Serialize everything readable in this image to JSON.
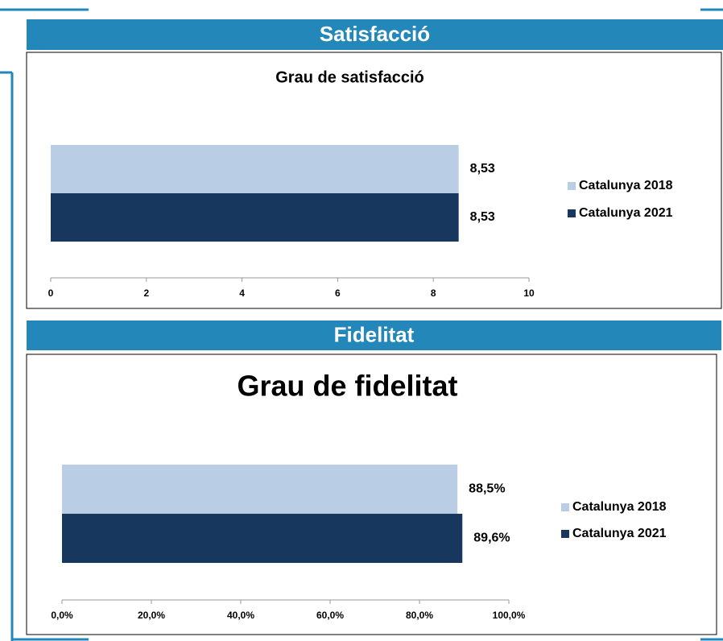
{
  "chart_data": [
    {
      "type": "bar",
      "orientation": "horizontal",
      "section": "Satisfacció",
      "title": "Grau de satisfacció",
      "series": [
        {
          "name": "Catalunya 2018",
          "color": "#b9cde5",
          "values": [
            8.53
          ],
          "value_labels": [
            "8,53"
          ]
        },
        {
          "name": "Catalunya 2021",
          "color": "#17375e",
          "values": [
            8.53
          ],
          "value_labels": [
            "8,53"
          ]
        }
      ],
      "xlim": [
        0,
        10
      ],
      "xticks": [
        0,
        2,
        4,
        6,
        8,
        10
      ],
      "legend": "right"
    },
    {
      "type": "bar",
      "orientation": "horizontal",
      "section": "Fidelitat",
      "title": "Grau de fidelitat",
      "series": [
        {
          "name": "Catalunya 2018",
          "color": "#b9cde5",
          "values": [
            88.5
          ],
          "value_labels": [
            "88,5%"
          ]
        },
        {
          "name": "Catalunya 2021",
          "color": "#17375e",
          "values": [
            89.6
          ],
          "value_labels": [
            "89,6%"
          ]
        }
      ],
      "xlim": [
        0,
        100
      ],
      "xticks": [
        {
          "value": 0,
          "label": "0,0%"
        },
        {
          "value": 20,
          "label": "20,0%"
        },
        {
          "value": 40,
          "label": "40,0%"
        },
        {
          "value": 60,
          "label": "60,0%"
        },
        {
          "value": 80,
          "label": "80,0%"
        },
        {
          "value": 100,
          "label": "100,0%"
        }
      ],
      "legend": "right"
    }
  ]
}
